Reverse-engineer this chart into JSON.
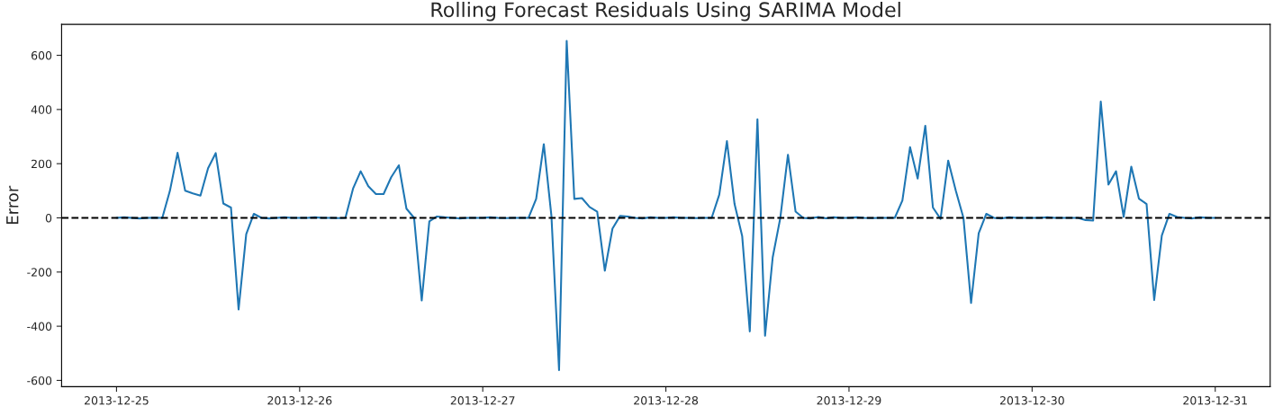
{
  "chart_data": {
    "type": "line",
    "title": "Rolling Forecast Residuals Using SARIMA Model",
    "ylabel": "Error",
    "x": [
      "2013-12-25T00:00",
      "2013-12-25T01:00",
      "2013-12-25T02:00",
      "2013-12-25T03:00",
      "2013-12-25T04:00",
      "2013-12-25T05:00",
      "2013-12-25T06:00",
      "2013-12-25T07:00",
      "2013-12-25T08:00",
      "2013-12-25T09:00",
      "2013-12-25T10:00",
      "2013-12-25T11:00",
      "2013-12-25T12:00",
      "2013-12-25T13:00",
      "2013-12-25T14:00",
      "2013-12-25T15:00",
      "2013-12-25T16:00",
      "2013-12-25T17:00",
      "2013-12-25T18:00",
      "2013-12-25T19:00",
      "2013-12-25T20:00",
      "2013-12-25T21:00",
      "2013-12-25T22:00",
      "2013-12-25T23:00",
      "2013-12-26T00:00",
      "2013-12-26T01:00",
      "2013-12-26T02:00",
      "2013-12-26T03:00",
      "2013-12-26T04:00",
      "2013-12-26T05:00",
      "2013-12-26T06:00",
      "2013-12-26T07:00",
      "2013-12-26T08:00",
      "2013-12-26T09:00",
      "2013-12-26T10:00",
      "2013-12-26T11:00",
      "2013-12-26T12:00",
      "2013-12-26T13:00",
      "2013-12-26T14:00",
      "2013-12-26T15:00",
      "2013-12-26T16:00",
      "2013-12-26T17:00",
      "2013-12-26T18:00",
      "2013-12-26T19:00",
      "2013-12-26T20:00",
      "2013-12-26T21:00",
      "2013-12-26T22:00",
      "2013-12-26T23:00",
      "2013-12-27T00:00",
      "2013-12-27T01:00",
      "2013-12-27T02:00",
      "2013-12-27T03:00",
      "2013-12-27T04:00",
      "2013-12-27T05:00",
      "2013-12-27T06:00",
      "2013-12-27T07:00",
      "2013-12-27T08:00",
      "2013-12-27T09:00",
      "2013-12-27T10:00",
      "2013-12-27T11:00",
      "2013-12-27T12:00",
      "2013-12-27T13:00",
      "2013-12-27T14:00",
      "2013-12-27T15:00",
      "2013-12-27T16:00",
      "2013-12-27T17:00",
      "2013-12-27T18:00",
      "2013-12-27T19:00",
      "2013-12-27T20:00",
      "2013-12-27T21:00",
      "2013-12-27T22:00",
      "2013-12-27T23:00",
      "2013-12-28T00:00",
      "2013-12-28T01:00",
      "2013-12-28T02:00",
      "2013-12-28T03:00",
      "2013-12-28T04:00",
      "2013-12-28T05:00",
      "2013-12-28T06:00",
      "2013-12-28T07:00",
      "2013-12-28T08:00",
      "2013-12-28T09:00",
      "2013-12-28T10:00",
      "2013-12-28T11:00",
      "2013-12-28T12:00",
      "2013-12-28T13:00",
      "2013-12-28T14:00",
      "2013-12-28T15:00",
      "2013-12-28T16:00",
      "2013-12-28T17:00",
      "2013-12-28T18:00",
      "2013-12-28T19:00",
      "2013-12-28T20:00",
      "2013-12-28T21:00",
      "2013-12-28T22:00",
      "2013-12-28T23:00",
      "2013-12-29T00:00",
      "2013-12-29T01:00",
      "2013-12-29T02:00",
      "2013-12-29T03:00",
      "2013-12-29T04:00",
      "2013-12-29T05:00",
      "2013-12-29T06:00",
      "2013-12-29T07:00",
      "2013-12-29T08:00",
      "2013-12-29T09:00",
      "2013-12-29T10:00",
      "2013-12-29T11:00",
      "2013-12-29T12:00",
      "2013-12-29T13:00",
      "2013-12-29T14:00",
      "2013-12-29T15:00",
      "2013-12-29T16:00",
      "2013-12-29T17:00",
      "2013-12-29T18:00",
      "2013-12-29T19:00",
      "2013-12-29T20:00",
      "2013-12-29T21:00",
      "2013-12-29T22:00",
      "2013-12-29T23:00",
      "2013-12-30T00:00",
      "2013-12-30T01:00",
      "2013-12-30T02:00",
      "2013-12-30T03:00",
      "2013-12-30T04:00",
      "2013-12-30T05:00",
      "2013-12-30T06:00",
      "2013-12-30T07:00",
      "2013-12-30T08:00",
      "2013-12-30T09:00",
      "2013-12-30T10:00",
      "2013-12-30T11:00",
      "2013-12-30T12:00",
      "2013-12-30T13:00",
      "2013-12-30T14:00",
      "2013-12-30T15:00",
      "2013-12-30T16:00",
      "2013-12-30T17:00",
      "2013-12-30T18:00",
      "2013-12-30T19:00",
      "2013-12-30T20:00",
      "2013-12-30T21:00",
      "2013-12-30T22:00",
      "2013-12-30T23:00",
      "2013-12-31T00:00"
    ],
    "series": [
      {
        "color": "#1f77b4",
        "values": [
          0,
          2,
          0,
          -2,
          0,
          1,
          0,
          100,
          240,
          100,
          90,
          82,
          183,
          239,
          53,
          38,
          -338,
          -60,
          15,
          0,
          -2,
          0,
          2,
          0,
          0,
          0,
          2,
          0,
          0,
          -1,
          0,
          108,
          172,
          117,
          88,
          88,
          150,
          194,
          34,
          0,
          -305,
          -13,
          5,
          2,
          0,
          -2,
          0,
          0,
          0,
          2,
          0,
          -1,
          0,
          0,
          0,
          70,
          272,
          7,
          -562,
          653,
          70,
          73,
          40,
          23,
          -195,
          -40,
          7,
          5,
          0,
          -2,
          2,
          0,
          0,
          2,
          0,
          0,
          -1,
          0,
          0,
          86,
          283,
          51,
          -67,
          -419,
          364,
          -435,
          -146,
          0,
          233,
          23,
          0,
          -2,
          3,
          -2,
          2,
          0,
          0,
          2,
          0,
          -1,
          0,
          0,
          0,
          64,
          261,
          145,
          340,
          38,
          -4,
          211,
          100,
          0,
          -314,
          -57,
          15,
          0,
          -2,
          2,
          0,
          0,
          0,
          0,
          2,
          0,
          0,
          0,
          0,
          -8,
          -10,
          429,
          123,
          172,
          4,
          189,
          71,
          51,
          -303,
          -65,
          15,
          3,
          0,
          -2,
          2,
          0,
          0
        ]
      }
    ],
    "xlim": [
      "2013-12-24T16:48",
      "2013-12-31T07:12"
    ],
    "ylim": [
      -623,
      714
    ],
    "xticks": [
      "2013-12-25",
      "2013-12-26",
      "2013-12-27",
      "2013-12-28",
      "2013-12-29",
      "2013-12-30",
      "2013-12-31"
    ],
    "yticks": [
      -600,
      -400,
      -200,
      0,
      200,
      400,
      600
    ],
    "ref_lines": [
      {
        "axis": "y",
        "value": 0,
        "color": "#000000",
        "line_style": "dashed"
      }
    ],
    "grid": false,
    "legend": false
  }
}
